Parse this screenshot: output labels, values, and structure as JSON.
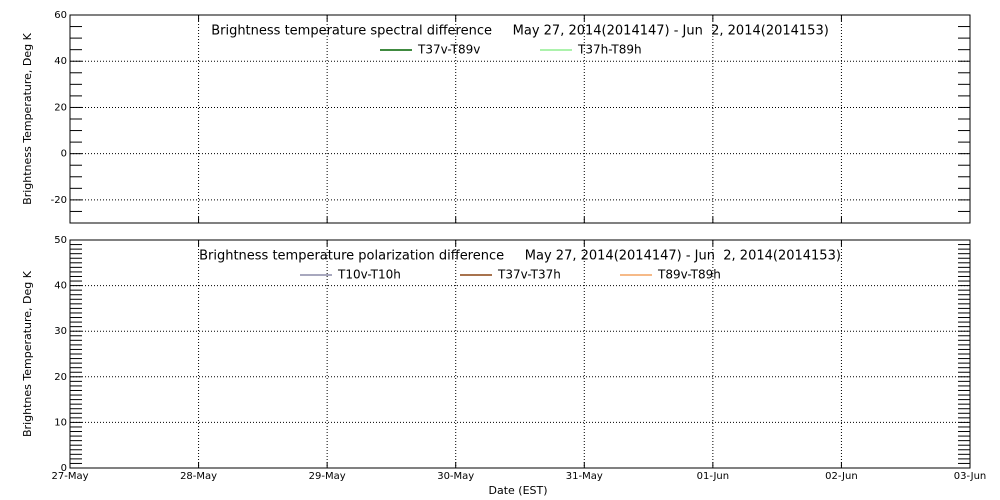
{
  "x_axis": {
    "label": "Date (EST)",
    "ticks": [
      "27-May",
      "28-May",
      "29-May",
      "30-May",
      "31-May",
      "01-Jun",
      "02-Jun",
      "03-Jun"
    ]
  },
  "chart_data": [
    {
      "type": "line",
      "title": "Brightness temperature spectral difference     May 27, 2014(2014147) - Jun  2, 2014(2014153)",
      "y_label": "Brightness Temperature, Deg K",
      "ylim": [
        -30,
        60
      ],
      "yticks": [
        -20,
        0,
        20,
        40,
        60
      ],
      "minor_yticks": [
        -25,
        -15,
        -10,
        -5,
        5,
        10,
        15,
        25,
        30,
        35,
        45,
        50,
        55
      ],
      "grid": true,
      "series": [
        {
          "name": "T37v-T89v",
          "color": "#006400",
          "values": []
        },
        {
          "name": "T37h-T89h",
          "color": "#90ee90",
          "values": []
        }
      ]
    },
    {
      "type": "line",
      "title": "Brightness temperature polarization difference     May 27, 2014(2014147) - Jun  2, 2014(2014153)",
      "y_label": "Brightnes Temperature, Deg K",
      "ylim": [
        0,
        50
      ],
      "yticks": [
        0,
        10,
        20,
        30,
        40,
        50
      ],
      "minor_yticks": [
        1,
        2,
        3,
        4,
        5,
        6,
        7,
        8,
        9,
        11,
        12,
        13,
        14,
        15,
        16,
        17,
        18,
        19,
        21,
        22,
        23,
        24,
        25,
        26,
        27,
        28,
        29,
        31,
        32,
        33,
        34,
        35,
        36,
        37,
        38,
        39,
        41,
        42,
        43,
        44,
        45,
        46,
        47,
        48,
        49
      ],
      "grid": true,
      "series": [
        {
          "name": "T10v-T10h",
          "color": "#8c8ca8",
          "values": []
        },
        {
          "name": "T37v-T37h",
          "color": "#8b4513",
          "values": []
        },
        {
          "name": "T89v-T89h",
          "color": "#f4a460",
          "values": []
        }
      ]
    }
  ]
}
